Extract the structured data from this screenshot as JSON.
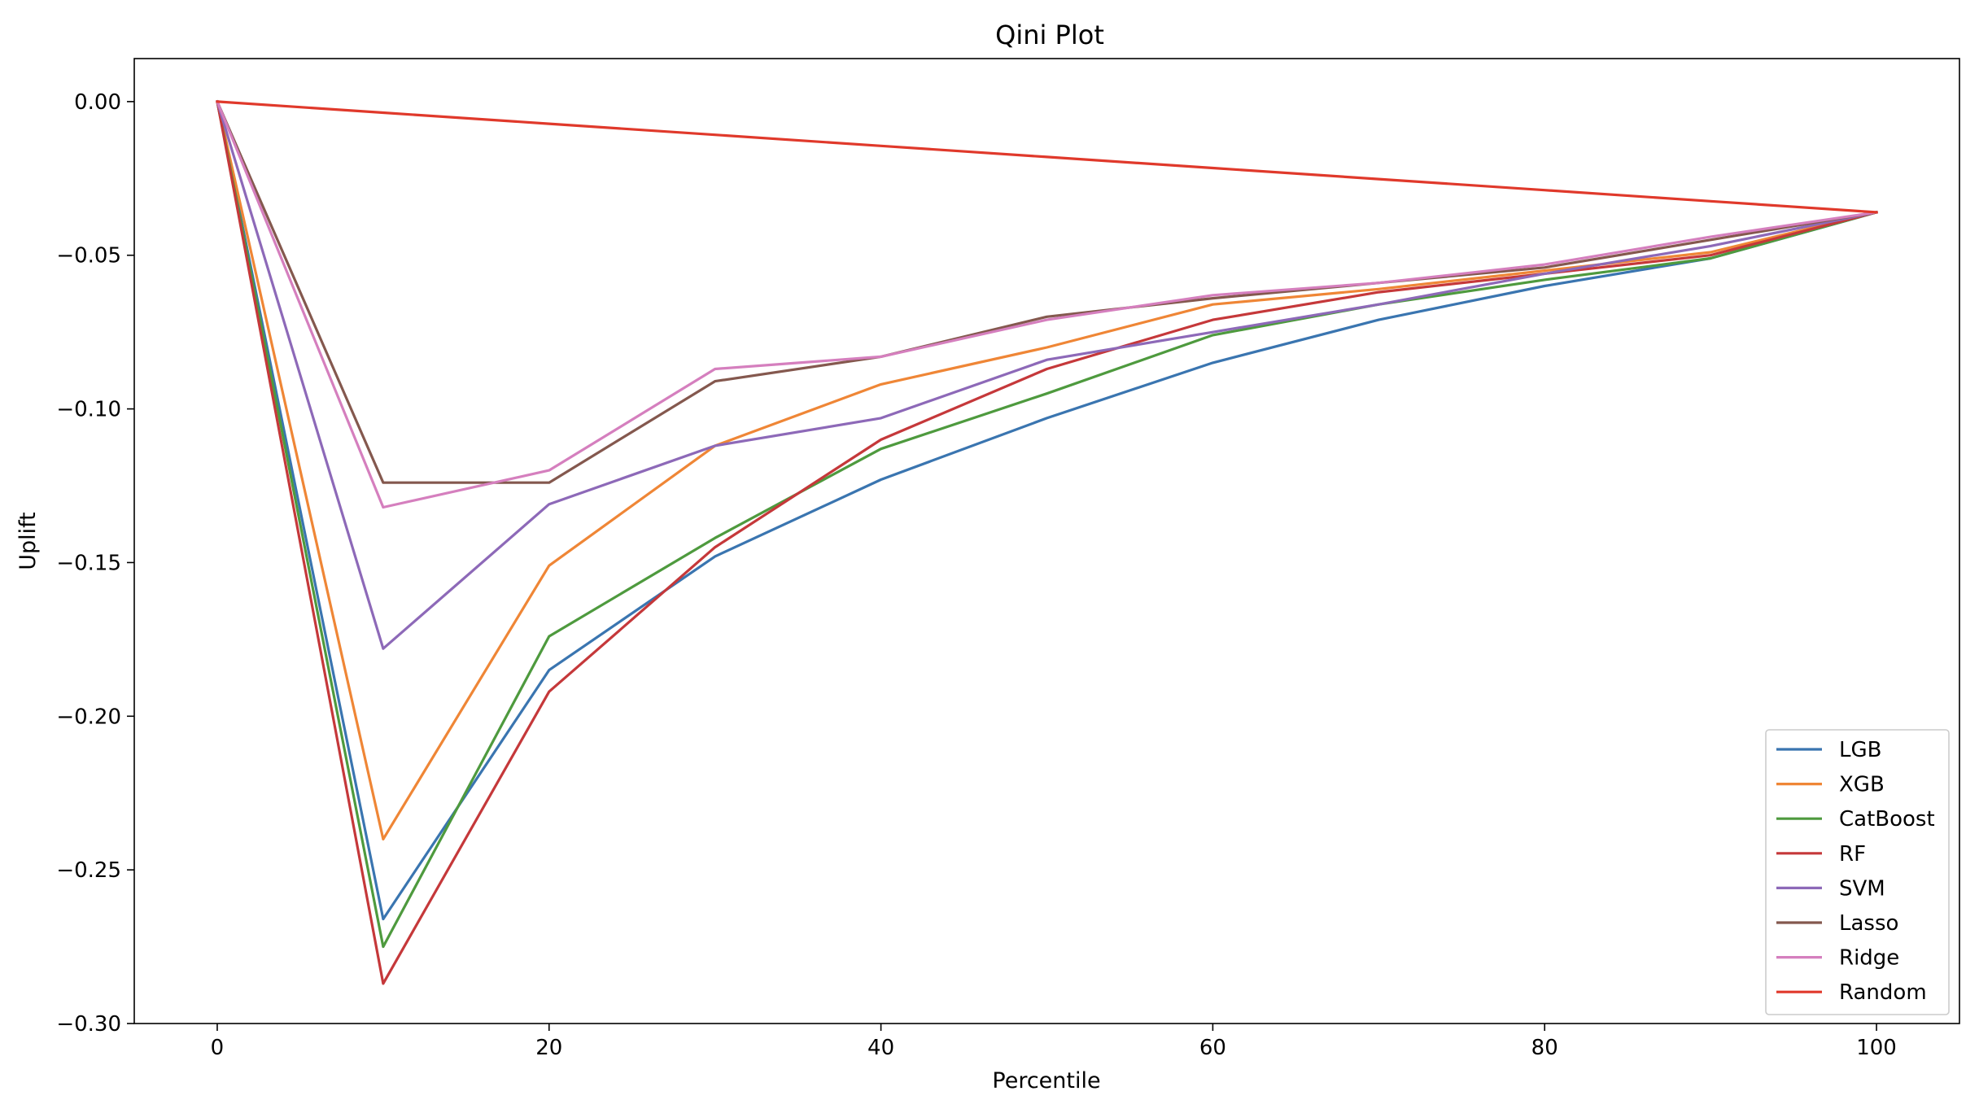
{
  "chart_data": {
    "type": "line",
    "title": "Qini Plot",
    "xlabel": "Percentile",
    "ylabel": "Uplift",
    "xlim": [
      -5,
      105
    ],
    "ylim": [
      -0.3,
      0.014
    ],
    "xticks": [
      0,
      20,
      40,
      60,
      80,
      100
    ],
    "yticks": [
      0.0,
      -0.05,
      -0.1,
      -0.15,
      -0.2,
      -0.25,
      -0.3
    ],
    "ytick_labels": [
      "0.00",
      "−0.05",
      "−0.10",
      "−0.15",
      "−0.20",
      "−0.25",
      "−0.30"
    ],
    "x": [
      0,
      10,
      20,
      30,
      40,
      50,
      60,
      70,
      80,
      90,
      100
    ],
    "grid": false,
    "legend_position": "lower-right",
    "series": [
      {
        "name": "LGB",
        "color": "#3a75b0",
        "values": [
          0,
          -0.266,
          -0.185,
          -0.148,
          -0.123,
          -0.103,
          -0.085,
          -0.071,
          -0.06,
          -0.051,
          -0.036
        ]
      },
      {
        "name": "XGB",
        "color": "#ef8636",
        "values": [
          0,
          -0.24,
          -0.151,
          -0.112,
          -0.092,
          -0.08,
          -0.066,
          -0.061,
          -0.055,
          -0.049,
          -0.036
        ]
      },
      {
        "name": "CatBoost",
        "color": "#4e9a3e",
        "values": [
          0,
          -0.275,
          -0.174,
          -0.142,
          -0.113,
          -0.095,
          -0.076,
          -0.066,
          -0.058,
          -0.051,
          -0.036
        ]
      },
      {
        "name": "RF",
        "color": "#c5383a",
        "values": [
          0,
          -0.287,
          -0.192,
          -0.145,
          -0.11,
          -0.087,
          -0.071,
          -0.062,
          -0.056,
          -0.05,
          -0.036
        ]
      },
      {
        "name": "SVM",
        "color": "#8d69b8",
        "values": [
          0,
          -0.178,
          -0.131,
          -0.112,
          -0.103,
          -0.084,
          -0.075,
          -0.066,
          -0.056,
          -0.047,
          -0.036
        ]
      },
      {
        "name": "Lasso",
        "color": "#84584e",
        "values": [
          0,
          -0.124,
          -0.124,
          -0.091,
          -0.083,
          -0.07,
          -0.064,
          -0.059,
          -0.054,
          -0.045,
          -0.036
        ]
      },
      {
        "name": "Ridge",
        "color": "#d57fbe",
        "values": [
          0,
          -0.132,
          -0.12,
          -0.087,
          -0.083,
          -0.071,
          -0.063,
          -0.059,
          -0.053,
          -0.044,
          -0.036
        ]
      },
      {
        "name": "Random",
        "color": "#e0392b",
        "values": [
          0,
          -0.0036,
          -0.0072,
          -0.0108,
          -0.0144,
          -0.018,
          -0.0216,
          -0.0252,
          -0.0288,
          -0.0324,
          -0.036
        ]
      }
    ]
  }
}
